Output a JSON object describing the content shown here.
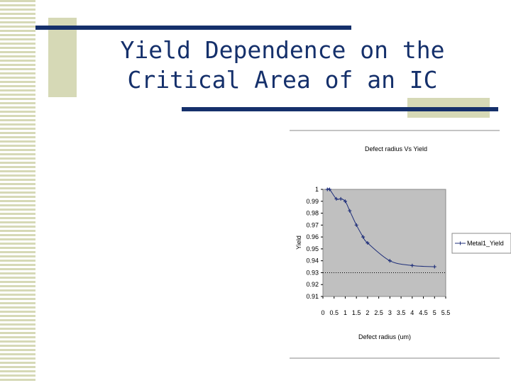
{
  "slide_title_line1": "Yield Dependence on the",
  "slide_title_line2": "Critical Area of an IC",
  "chart_data": {
    "type": "line",
    "title": "Defect radius Vs Yield",
    "x_label": "Defect radius (um)",
    "y_label": "Yield",
    "x": [
      0.2,
      0.3,
      0.6,
      0.8,
      1.0,
      1.2,
      1.5,
      1.8,
      2.0,
      3.0,
      4.0,
      5.0
    ],
    "series": [
      {
        "name": "Metal1_Yield",
        "color": "#1f2f7a",
        "values": [
          1.0,
          1.0,
          0.992,
          0.992,
          0.99,
          0.982,
          0.97,
          0.96,
          0.955,
          0.94,
          0.936,
          0.935
        ]
      }
    ],
    "reference_line": 0.93,
    "xlim": [
      0,
      5.5
    ],
    "xticks": [
      0,
      0.5,
      1,
      1.5,
      2,
      2.5,
      3,
      3.5,
      4,
      4.5,
      5,
      5.5
    ],
    "ylim": [
      0.91,
      1
    ],
    "yticks": [
      0.91,
      0.92,
      0.93,
      0.94,
      0.95,
      0.96,
      0.97,
      0.98,
      0.99,
      1
    ],
    "legend": "right",
    "plot_background": "#c0c0c0"
  }
}
